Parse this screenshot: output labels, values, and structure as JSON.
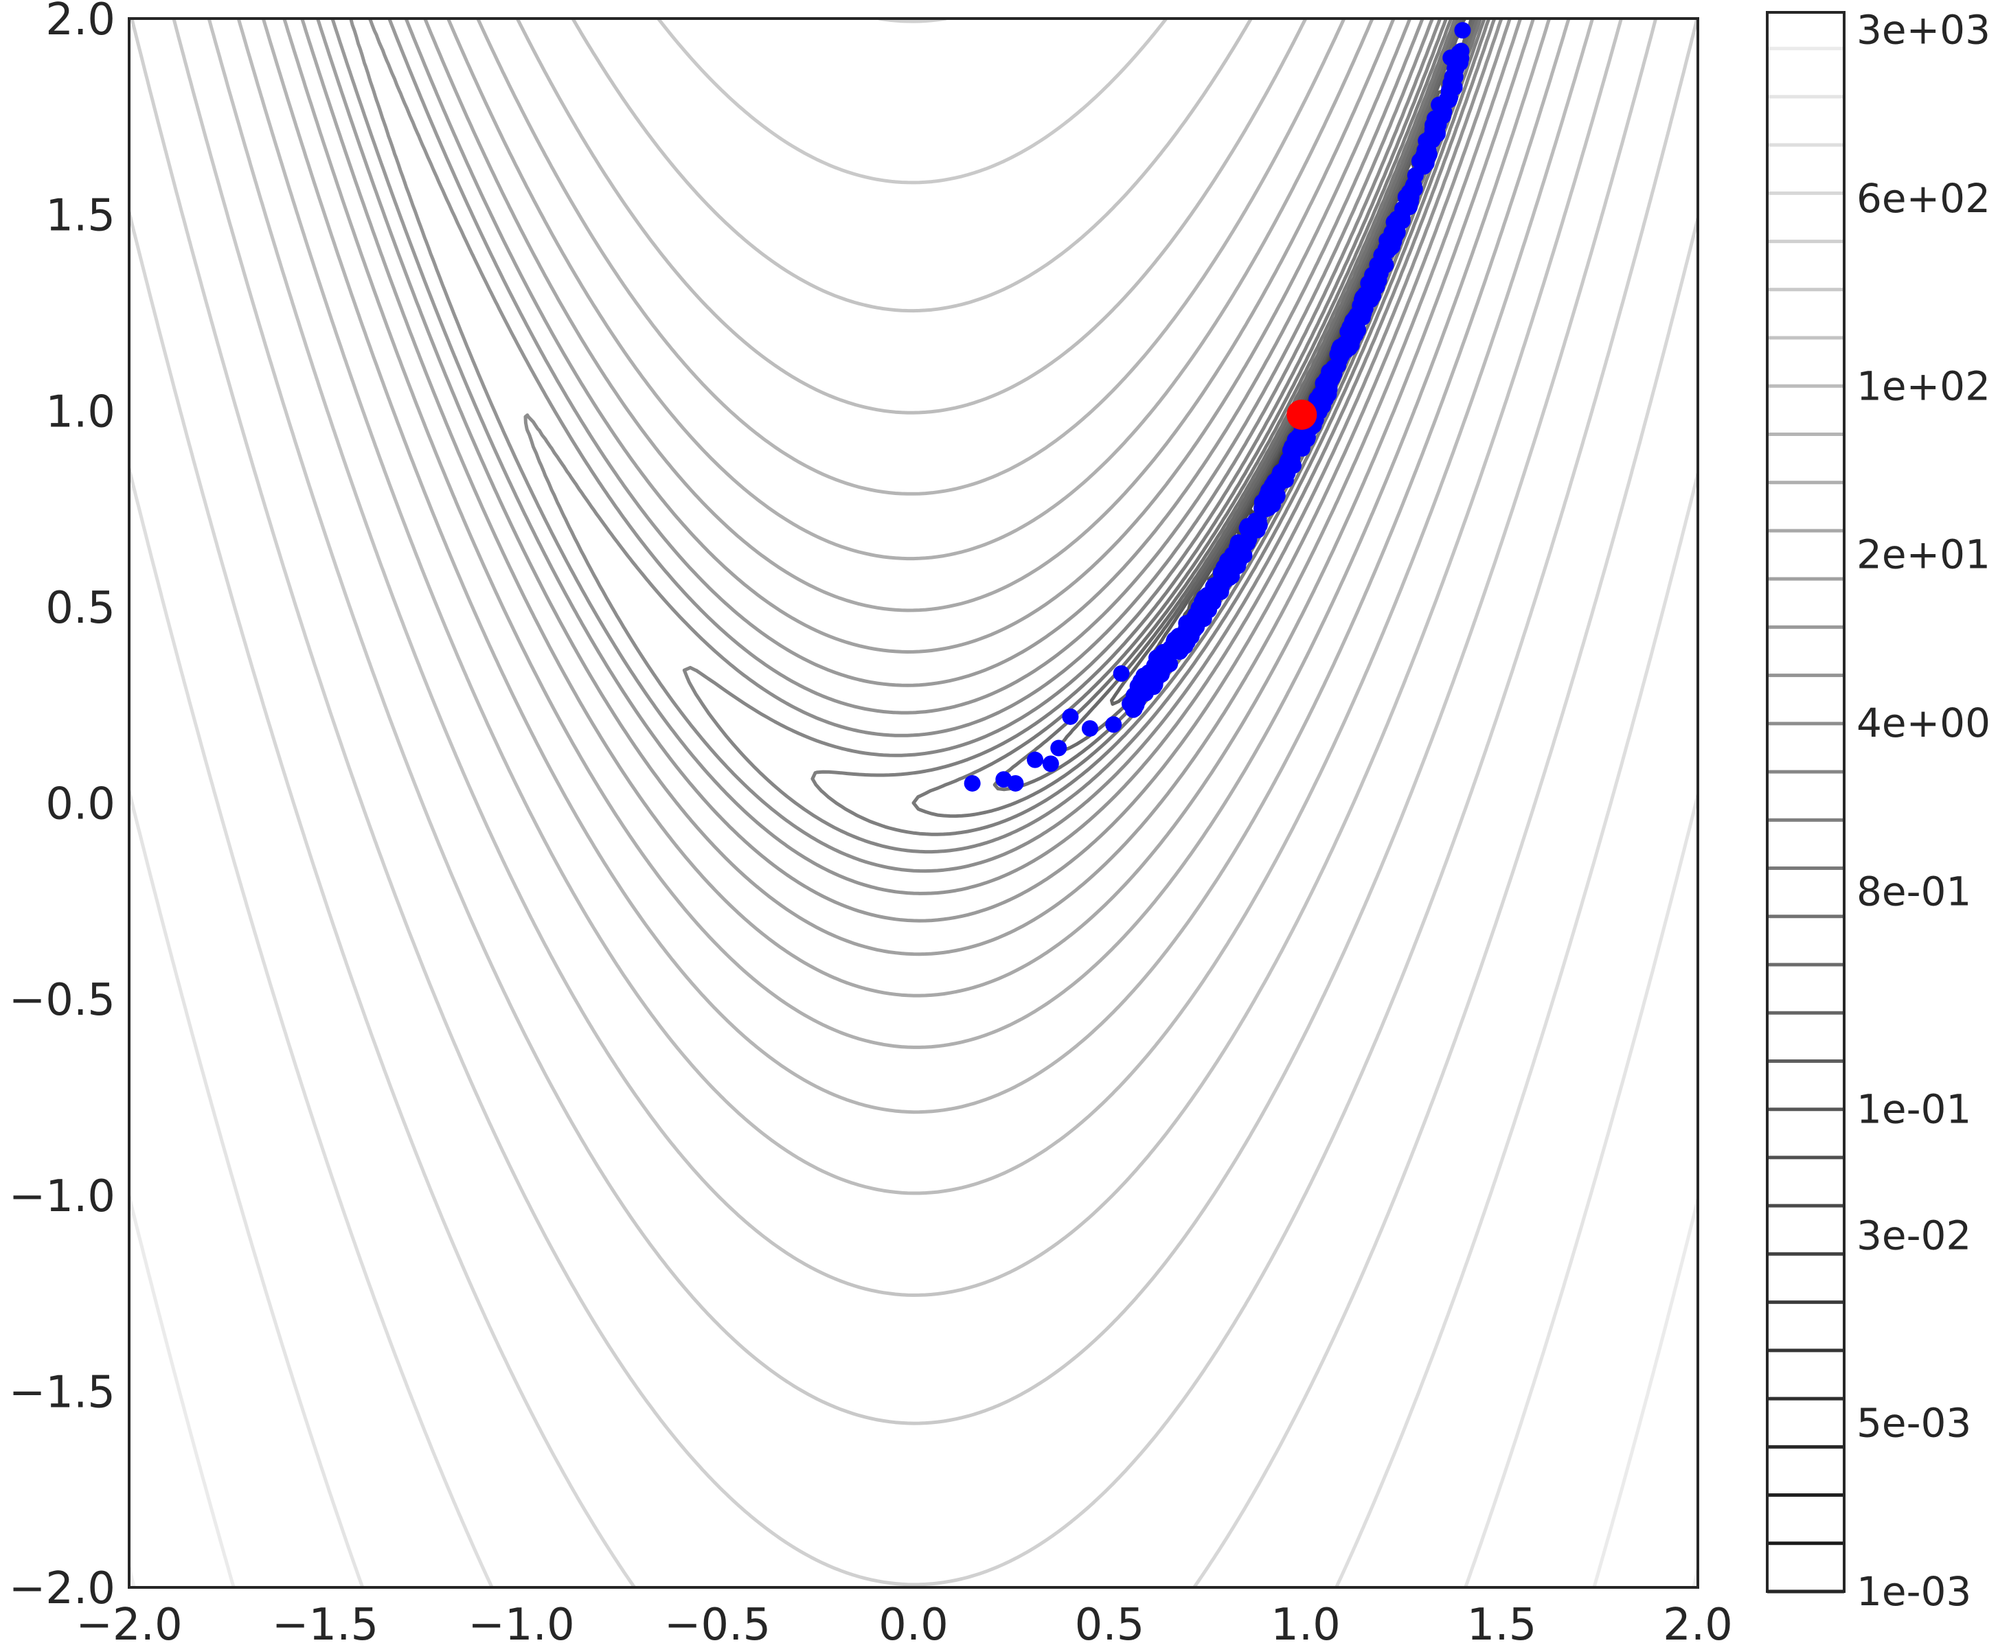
{
  "chart_data": {
    "type": "scatter",
    "subtype": "contour-with-scatter",
    "title": "",
    "xlabel": "",
    "ylabel": "",
    "xlim": [
      -2.0,
      2.0
    ],
    "ylim": [
      -2.0,
      2.0
    ],
    "grid": false,
    "x_tick_labels": [
      "−2.0",
      "−1.5",
      "−1.0",
      "−0.5",
      "0.0",
      "0.5",
      "1.0",
      "1.5",
      "2.0"
    ],
    "x_tick_values": [
      -2.0,
      -1.5,
      -1.0,
      -0.5,
      0.0,
      0.5,
      1.0,
      1.5,
      2.0
    ],
    "y_tick_labels": [
      "−2.0",
      "−1.5",
      "−1.0",
      "−0.5",
      "0.0",
      "0.5",
      "1.0",
      "1.5",
      "2.0"
    ],
    "y_tick_values": [
      -2.0,
      -1.5,
      -1.0,
      -0.5,
      0.0,
      0.5,
      1.0,
      1.5,
      2.0
    ],
    "contour": {
      "function": "rosenbrock",
      "levels_log10": [
        -3.0,
        -2.8,
        -2.6,
        -2.4,
        -2.2,
        -2.0,
        -1.8,
        -1.6,
        -1.4,
        -1.2,
        -1.0,
        -0.8,
        -0.6,
        -0.4,
        -0.2,
        0.0,
        0.2,
        0.4,
        0.6,
        0.8,
        1.0,
        1.2,
        1.4,
        1.6,
        1.8,
        2.0,
        2.2,
        2.4,
        2.6,
        2.8,
        3.0,
        3.2,
        3.4,
        3.55
      ],
      "colormap": "gray"
    },
    "colorbar": {
      "scale": "log",
      "range": [
        0.001,
        3548
      ],
      "tick_labels": [
        "1e-03",
        "5e-03",
        "3e-02",
        "1e-01",
        "8e-01",
        "4e+00",
        "2e+01",
        "1e+02",
        "6e+02",
        "3e+03"
      ],
      "tick_values": [
        0.001,
        0.005,
        0.03,
        0.1,
        0.8,
        4,
        20,
        100,
        600,
        3000
      ]
    },
    "series": [
      {
        "marker": "circle",
        "color": "#0000ff",
        "points_sampled_along": "y = x^2 - 0.05",
        "x_range": [
          0.15,
          1.4
        ],
        "approx_count": 450,
        "notable_points": [
          [
            0.15,
            0.05
          ],
          [
            0.23,
            0.06
          ],
          [
            0.26,
            0.05
          ],
          [
            0.31,
            0.11
          ],
          [
            0.35,
            0.1
          ],
          [
            0.37,
            0.14
          ],
          [
            0.4,
            0.22
          ],
          [
            0.45,
            0.19
          ],
          [
            0.51,
            0.2
          ],
          [
            0.53,
            0.33
          ],
          [
            0.58,
            0.29
          ],
          [
            0.62,
            0.37
          ],
          [
            0.7,
            0.42
          ],
          [
            0.73,
            0.48
          ],
          [
            0.82,
            0.62
          ],
          [
            0.9,
            0.78
          ],
          [
            1.0,
            0.95
          ],
          [
            1.1,
            1.17
          ],
          [
            1.2,
            1.38
          ],
          [
            1.28,
            1.6
          ],
          [
            1.34,
            1.78
          ],
          [
            1.37,
            1.9
          ],
          [
            1.4,
            1.97
          ]
        ]
      },
      {
        "marker": "circle-large",
        "color": "#ff0000",
        "points": [
          [
            0.99,
            0.99
          ]
        ]
      }
    ]
  }
}
